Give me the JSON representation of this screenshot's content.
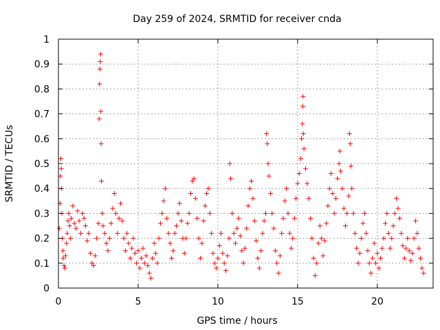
{
  "chart_data": {
    "type": "scatter",
    "title": "Day 259 of 2024, SRMTID for receiver cnda",
    "xlabel": "GPS time / hours",
    "ylabel": "SRMTID / TECUs",
    "xlim": [
      0,
      23.5
    ],
    "ylim": [
      0,
      1
    ],
    "xticks": [
      0,
      5,
      10,
      15,
      20
    ],
    "xtick_labels": [
      "0",
      "5",
      "10",
      "15",
      "20"
    ],
    "yticks": [
      0,
      0.1,
      0.2,
      0.3,
      0.4,
      0.5,
      0.6,
      0.7,
      0.8,
      0.9,
      1
    ],
    "ytick_labels": [
      "0",
      "0.1",
      "0.2",
      "0.3",
      "0.4",
      "0.5",
      "0.6",
      "0.7",
      "0.8",
      "0.9",
      "1"
    ],
    "grid": true,
    "marker": "plus",
    "marker_color": "#ff0000",
    "series": [
      {
        "name": "SRMTID",
        "points": [
          [
            0.05,
            0.24
          ],
          [
            0.1,
            0.34
          ],
          [
            0.12,
            0.45
          ],
          [
            0.15,
            0.52
          ],
          [
            0.18,
            0.48
          ],
          [
            0.2,
            0.4
          ],
          [
            0.22,
            0.3
          ],
          [
            0.25,
            0.2
          ],
          [
            0.28,
            0.15
          ],
          [
            0.3,
            0.12
          ],
          [
            0.35,
            0.09
          ],
          [
            0.4,
            0.08
          ],
          [
            0.45,
            0.13
          ],
          [
            0.5,
            0.18
          ],
          [
            0.55,
            0.22
          ],
          [
            0.6,
            0.27
          ],
          [
            0.65,
            0.3
          ],
          [
            0.7,
            0.25
          ],
          [
            0.75,
            0.2
          ],
          [
            0.8,
            0.28
          ],
          [
            0.9,
            0.33
          ],
          [
            1.0,
            0.26
          ],
          [
            1.1,
            0.24
          ],
          [
            1.2,
            0.31
          ],
          [
            1.3,
            0.27
          ],
          [
            1.4,
            0.22
          ],
          [
            1.5,
            0.3
          ],
          [
            1.6,
            0.28
          ],
          [
            1.7,
            0.25
          ],
          [
            1.8,
            0.19
          ],
          [
            1.9,
            0.22
          ],
          [
            2.0,
            0.14
          ],
          [
            2.1,
            0.1
          ],
          [
            2.2,
            0.09
          ],
          [
            2.3,
            0.13
          ],
          [
            2.4,
            0.2
          ],
          [
            2.5,
            0.26
          ],
          [
            2.55,
            0.68
          ],
          [
            2.58,
            0.82
          ],
          [
            2.6,
            0.88
          ],
          [
            2.62,
            0.91
          ],
          [
            2.64,
            0.94
          ],
          [
            2.66,
            0.71
          ],
          [
            2.68,
            0.58
          ],
          [
            2.7,
            0.43
          ],
          [
            2.75,
            0.3
          ],
          [
            2.8,
            0.25
          ],
          [
            2.9,
            0.22
          ],
          [
            3.0,
            0.18
          ],
          [
            3.1,
            0.15
          ],
          [
            3.2,
            0.2
          ],
          [
            3.3,
            0.26
          ],
          [
            3.4,
            0.32
          ],
          [
            3.5,
            0.38
          ],
          [
            3.6,
            0.3
          ],
          [
            3.7,
            0.22
          ],
          [
            3.8,
            0.28
          ],
          [
            3.9,
            0.34
          ],
          [
            4.0,
            0.27
          ],
          [
            4.1,
            0.2
          ],
          [
            4.2,
            0.15
          ],
          [
            4.3,
            0.22
          ],
          [
            4.4,
            0.18
          ],
          [
            4.5,
            0.12
          ],
          [
            4.6,
            0.16
          ],
          [
            4.7,
            0.2
          ],
          [
            4.8,
            0.14
          ],
          [
            4.9,
            0.1
          ],
          [
            5.0,
            0.15
          ],
          [
            5.1,
            0.08
          ],
          [
            5.2,
            0.12
          ],
          [
            5.3,
            0.16
          ],
          [
            5.4,
            0.1
          ],
          [
            5.5,
            0.13
          ],
          [
            5.6,
            0.09
          ],
          [
            5.7,
            0.06
          ],
          [
            5.8,
            0.04
          ],
          [
            5.9,
            0.12
          ],
          [
            6.0,
            0.18
          ],
          [
            6.1,
            0.14
          ],
          [
            6.2,
            0.1
          ],
          [
            6.3,
            0.2
          ],
          [
            6.4,
            0.26
          ],
          [
            6.5,
            0.3
          ],
          [
            6.6,
            0.35
          ],
          [
            6.7,
            0.4
          ],
          [
            6.8,
            0.28
          ],
          [
            6.9,
            0.22
          ],
          [
            7.0,
            0.18
          ],
          [
            7.1,
            0.12
          ],
          [
            7.2,
            0.15
          ],
          [
            7.3,
            0.22
          ],
          [
            7.4,
            0.25
          ],
          [
            7.5,
            0.3
          ],
          [
            7.6,
            0.34
          ],
          [
            7.7,
            0.27
          ],
          [
            7.8,
            0.2
          ],
          [
            7.9,
            0.14
          ],
          [
            8.0,
            0.2
          ],
          [
            8.1,
            0.26
          ],
          [
            8.2,
            0.3
          ],
          [
            8.3,
            0.38
          ],
          [
            8.4,
            0.43
          ],
          [
            8.5,
            0.44
          ],
          [
            8.6,
            0.36
          ],
          [
            8.7,
            0.28
          ],
          [
            8.8,
            0.2
          ],
          [
            8.9,
            0.12
          ],
          [
            9.0,
            0.18
          ],
          [
            9.1,
            0.27
          ],
          [
            9.2,
            0.33
          ],
          [
            9.3,
            0.38
          ],
          [
            9.4,
            0.4
          ],
          [
            9.5,
            0.3
          ],
          [
            9.6,
            0.22
          ],
          [
            9.7,
            0.14
          ],
          [
            9.8,
            0.1
          ],
          [
            9.9,
            0.08
          ],
          [
            10.0,
            0.12
          ],
          [
            10.1,
            0.17
          ],
          [
            10.2,
            0.22
          ],
          [
            10.3,
            0.14
          ],
          [
            10.4,
            0.1
          ],
          [
            10.5,
            0.07
          ],
          [
            10.6,
            0.13
          ],
          [
            10.7,
            0.2
          ],
          [
            10.75,
            0.5
          ],
          [
            10.8,
            0.44
          ],
          [
            10.9,
            0.3
          ],
          [
            11.0,
            0.22
          ],
          [
            11.1,
            0.18
          ],
          [
            11.2,
            0.24
          ],
          [
            11.3,
            0.28
          ],
          [
            11.4,
            0.21
          ],
          [
            11.5,
            0.15
          ],
          [
            11.6,
            0.1
          ],
          [
            11.7,
            0.16
          ],
          [
            11.8,
            0.24
          ],
          [
            11.9,
            0.33
          ],
          [
            12.0,
            0.4
          ],
          [
            12.1,
            0.43
          ],
          [
            12.2,
            0.36
          ],
          [
            12.3,
            0.27
          ],
          [
            12.4,
            0.19
          ],
          [
            12.5,
            0.12
          ],
          [
            12.6,
            0.08
          ],
          [
            12.7,
            0.15
          ],
          [
            12.8,
            0.22
          ],
          [
            12.9,
            0.27
          ],
          [
            13.0,
            0.3
          ],
          [
            13.05,
            0.62
          ],
          [
            13.1,
            0.58
          ],
          [
            13.15,
            0.5
          ],
          [
            13.2,
            0.45
          ],
          [
            13.3,
            0.38
          ],
          [
            13.4,
            0.3
          ],
          [
            13.5,
            0.24
          ],
          [
            13.6,
            0.15
          ],
          [
            13.7,
            0.1
          ],
          [
            13.8,
            0.06
          ],
          [
            13.9,
            0.13
          ],
          [
            14.0,
            0.22
          ],
          [
            14.1,
            0.28
          ],
          [
            14.2,
            0.35
          ],
          [
            14.3,
            0.4
          ],
          [
            14.4,
            0.3
          ],
          [
            14.5,
            0.22
          ],
          [
            14.6,
            0.16
          ],
          [
            14.7,
            0.2
          ],
          [
            14.8,
            0.28
          ],
          [
            14.9,
            0.36
          ],
          [
            15.0,
            0.42
          ],
          [
            15.1,
            0.46
          ],
          [
            15.2,
            0.52
          ],
          [
            15.25,
            0.6
          ],
          [
            15.3,
            0.66
          ],
          [
            15.32,
            0.73
          ],
          [
            15.34,
            0.77
          ],
          [
            15.36,
            0.62
          ],
          [
            15.4,
            0.56
          ],
          [
            15.5,
            0.48
          ],
          [
            15.6,
            0.42
          ],
          [
            15.7,
            0.36
          ],
          [
            15.8,
            0.28
          ],
          [
            15.9,
            0.2
          ],
          [
            16.0,
            0.12
          ],
          [
            16.1,
            0.05
          ],
          [
            16.2,
            0.1
          ],
          [
            16.3,
            0.18
          ],
          [
            16.4,
            0.25
          ],
          [
            16.5,
            0.2
          ],
          [
            16.6,
            0.13
          ],
          [
            16.7,
            0.19
          ],
          [
            16.8,
            0.26
          ],
          [
            16.9,
            0.33
          ],
          [
            17.0,
            0.4
          ],
          [
            17.1,
            0.46
          ],
          [
            17.2,
            0.38
          ],
          [
            17.3,
            0.3
          ],
          [
            17.4,
            0.36
          ],
          [
            17.5,
            0.44
          ],
          [
            17.6,
            0.5
          ],
          [
            17.65,
            0.55
          ],
          [
            17.7,
            0.47
          ],
          [
            17.8,
            0.4
          ],
          [
            17.9,
            0.32
          ],
          [
            18.0,
            0.25
          ],
          [
            18.1,
            0.3
          ],
          [
            18.2,
            0.37
          ],
          [
            18.25,
            0.62
          ],
          [
            18.3,
            0.58
          ],
          [
            18.35,
            0.49
          ],
          [
            18.4,
            0.4
          ],
          [
            18.5,
            0.3
          ],
          [
            18.6,
            0.22
          ],
          [
            18.7,
            0.16
          ],
          [
            18.8,
            0.1
          ],
          [
            18.9,
            0.14
          ],
          [
            19.0,
            0.2
          ],
          [
            19.1,
            0.26
          ],
          [
            19.2,
            0.3
          ],
          [
            19.3,
            0.22
          ],
          [
            19.4,
            0.15
          ],
          [
            19.5,
            0.1
          ],
          [
            19.6,
            0.06
          ],
          [
            19.7,
            0.12
          ],
          [
            19.8,
            0.18
          ],
          [
            19.9,
            0.1
          ],
          [
            20.0,
            0.14
          ],
          [
            20.1,
            0.08
          ],
          [
            20.2,
            0.12
          ],
          [
            20.3,
            0.16
          ],
          [
            20.4,
            0.2
          ],
          [
            20.5,
            0.26
          ],
          [
            20.6,
            0.3
          ],
          [
            20.7,
            0.22
          ],
          [
            20.8,
            0.16
          ],
          [
            20.9,
            0.2
          ],
          [
            21.0,
            0.25
          ],
          [
            21.1,
            0.3
          ],
          [
            21.2,
            0.36
          ],
          [
            21.3,
            0.32
          ],
          [
            21.4,
            0.28
          ],
          [
            21.5,
            0.22
          ],
          [
            21.6,
            0.17
          ],
          [
            21.7,
            0.12
          ],
          [
            21.8,
            0.16
          ],
          [
            21.9,
            0.2
          ],
          [
            22.0,
            0.15
          ],
          [
            22.1,
            0.11
          ],
          [
            22.2,
            0.14
          ],
          [
            22.3,
            0.2
          ],
          [
            22.4,
            0.27
          ],
          [
            22.5,
            0.22
          ],
          [
            22.6,
            0.16
          ],
          [
            22.7,
            0.12
          ],
          [
            22.8,
            0.08
          ],
          [
            22.9,
            0.06
          ]
        ]
      }
    ]
  }
}
